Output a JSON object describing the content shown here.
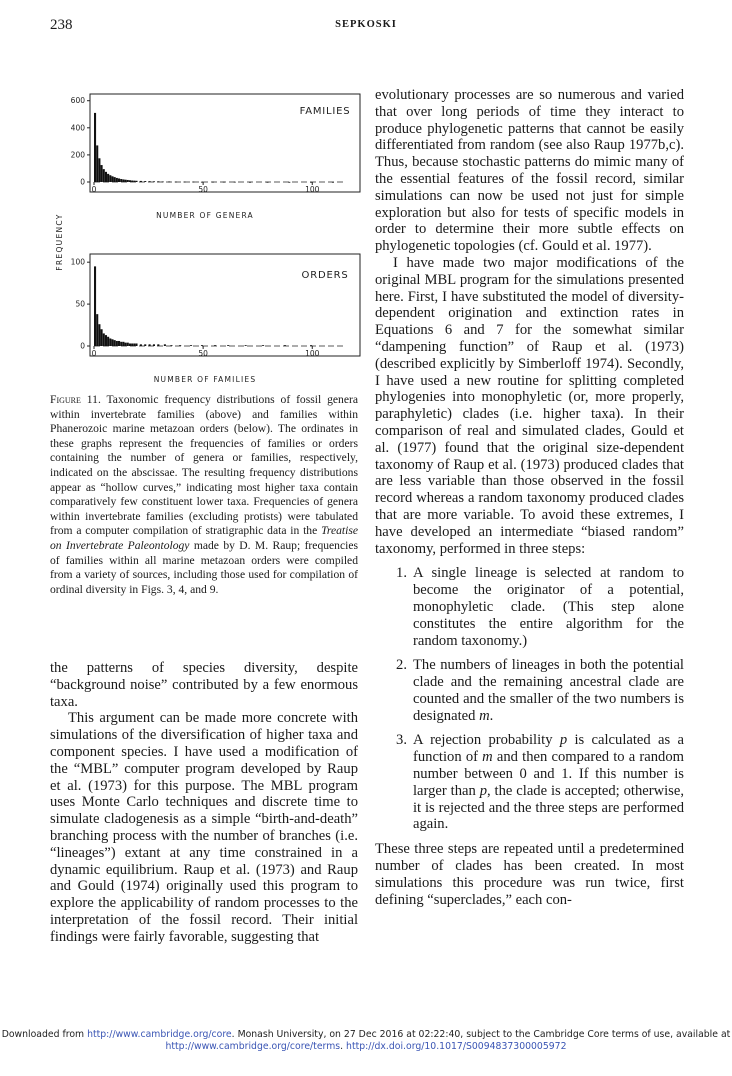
{
  "header": {
    "page_number": "238",
    "running_head": "SEPKOSKI"
  },
  "figure": {
    "y_axis_label": "FREQUENCY",
    "panels": [
      {
        "label": "FAMILIES",
        "xlabel": "NUMBER OF GENERA",
        "x_ticks": [
          "0",
          "50",
          "100"
        ],
        "y_ticks": [
          "0",
          "200",
          "400",
          "600"
        ]
      },
      {
        "label": "ORDERS",
        "xlabel": "NUMBER OF FAMILIES",
        "x_ticks": [
          "0",
          "50",
          "100"
        ],
        "y_ticks": [
          "0",
          "50",
          "100"
        ]
      }
    ]
  },
  "chart_data": [
    {
      "type": "bar",
      "label": "FAMILIES",
      "xlabel": "NUMBER OF GENERA",
      "ylabel": "FREQUENCY",
      "xlim": [
        0,
        115
      ],
      "ylim": [
        0,
        620
      ],
      "x": [
        1,
        2,
        3,
        4,
        5,
        6,
        7,
        8,
        9,
        10,
        11,
        12,
        13,
        14,
        15,
        16,
        17,
        18,
        19,
        20,
        22,
        24,
        26,
        28,
        30,
        32,
        35,
        38,
        42,
        46,
        50,
        55,
        60,
        65,
        72,
        80,
        90,
        100,
        110
      ],
      "values": [
        510,
        270,
        175,
        125,
        95,
        75,
        60,
        50,
        42,
        36,
        30,
        26,
        22,
        19,
        17,
        15,
        13,
        11,
        10,
        9,
        8,
        7,
        6,
        5,
        5,
        4,
        4,
        3,
        3,
        3,
        2,
        2,
        2,
        2,
        1,
        1,
        1,
        1,
        1
      ]
    },
    {
      "type": "bar",
      "label": "ORDERS",
      "xlabel": "NUMBER OF FAMILIES",
      "ylabel": "FREQUENCY",
      "xlim": [
        0,
        115
      ],
      "ylim": [
        0,
        105
      ],
      "x": [
        1,
        2,
        3,
        4,
        5,
        6,
        7,
        8,
        9,
        10,
        11,
        12,
        13,
        14,
        15,
        16,
        17,
        18,
        19,
        20,
        22,
        24,
        26,
        28,
        30,
        33,
        36,
        40,
        45,
        50,
        56,
        62,
        70,
        78,
        88,
        100
      ],
      "values": [
        95,
        38,
        26,
        20,
        15,
        13,
        11,
        9,
        8,
        7,
        6,
        6,
        5,
        5,
        4,
        4,
        3,
        3,
        3,
        3,
        2,
        2,
        2,
        2,
        2,
        2,
        1,
        1,
        1,
        1,
        1,
        1,
        1,
        1,
        1,
        1
      ]
    }
  ],
  "caption": {
    "label": "Figure 11.",
    "text_before_italic": "Taxonomic frequency distributions of fossil genera within invertebrate families (above) and families within Phanerozoic marine metazoan orders (below). The ordinates in these graphs represent the frequencies of families or orders containing the number of genera or families, respectively, indicated on the abscissae. The resulting frequency distributions appear as “hollow curves,” indicating most higher taxa contain comparatively few constituent lower taxa. Frequencies of genera within invertebrate families (excluding protists) were tabulated from a computer compilation of stratigraphic data in the",
    "italic": "Treatise on Invertebrate Paleontology",
    "text_after_italic": "made by D. M. Raup; frequencies of families within all marine metazoan orders were compiled from a variety of sources, including those used for compilation of ordinal diversity in Figs. 3, 4, and 9."
  },
  "left_column": {
    "p1": "the patterns of species diversity, despite “background noise” contributed by a few enormous taxa.",
    "p2": "This argument can be made more concrete with simulations of the diversification of higher taxa and component species. I have used a modification of the “MBL” computer program developed by Raup et al. (1973) for this purpose. The MBL program uses Monte Carlo techniques and discrete time to simulate cladogenesis as a simple “birth-and-death” branching process with the number of branches (i.e. “lineages”) extant at any time constrained in a dynamic equilibrium. Raup et al. (1973) and Raup and Gould (1974) originally used this program to explore the applicability of random processes to the interpretation of the fossil record. Their initial findings were fairly favorable, suggesting that"
  },
  "right_column": {
    "p1": "evolutionary processes are so numerous and varied that over long periods of time they interact to produce phylogenetic patterns that cannot be easily differentiated from random (see also Raup 1977b,c). Thus, because stochastic patterns do mimic many of the essential features of the fossil record, similar simulations can now be used not just for simple exploration but also for tests of specific models in order to determine their more subtle effects on phylogenetic topologies (cf. Gould et al. 1977).",
    "p2": "I have made two major modifications of the original MBL program for the simulations presented here. First, I have substituted the model of diversity-dependent origination and extinction rates in Equations 6 and 7 for the somewhat similar “dampening function” of Raup et al. (1973) (described explicitly by Simberloff 1974). Secondly, I have used a new routine for splitting completed phylogenies into monophyletic (or, more properly, paraphyletic) clades (i.e. higher taxa). In their comparison of real and simulated clades, Gould et al. (1977) found that the original size-dependent taxonomy of Raup et al. (1973) produced clades that are less variable than those observed in the fossil record whereas a random taxonomy produced clades that are more variable. To avoid these extremes, I have developed an intermediate “biased random” taxonomy, performed in three steps:",
    "steps": [
      {
        "num": "1.",
        "text": "A single lineage is selected at random to become the originator of a potential, monophyletic clade. (This step alone constitutes the entire algorithm for the random taxonomy.)"
      },
      {
        "num": "2.",
        "text_before": "The numbers of lineages in both the potential clade and the remaining ancestral clade are counted and the smaller of the two numbers is designated",
        "var": "m",
        "text_after": "."
      },
      {
        "num": "3.",
        "text_a": "A rejection probability",
        "var_p": "p",
        "text_b": "is calculated as a function of",
        "var_m": "m",
        "text_c": "and then compared to a random number between 0 and 1. If this number is larger than",
        "var_p2": "p",
        "text_d": ", the clade is accepted; otherwise, it is rejected and the three steps are performed again."
      }
    ],
    "p3": "These three steps are repeated until a predetermined number of clades has been created. In most simulations this procedure was run twice, first defining “superclades,” each con-"
  },
  "footer": {
    "t1": "Downloaded from",
    "l1": "http://www.cambridge.org/core",
    "t2": ". Monash University, on 27 Dec 2016 at 02:22:40, subject to the Cambridge Core terms of use, available at",
    "l2": "http://www.cambridge.org/core/terms",
    "t3": ".",
    "l3": "http://dx.doi.org/10.1017/S0094837300005972"
  }
}
